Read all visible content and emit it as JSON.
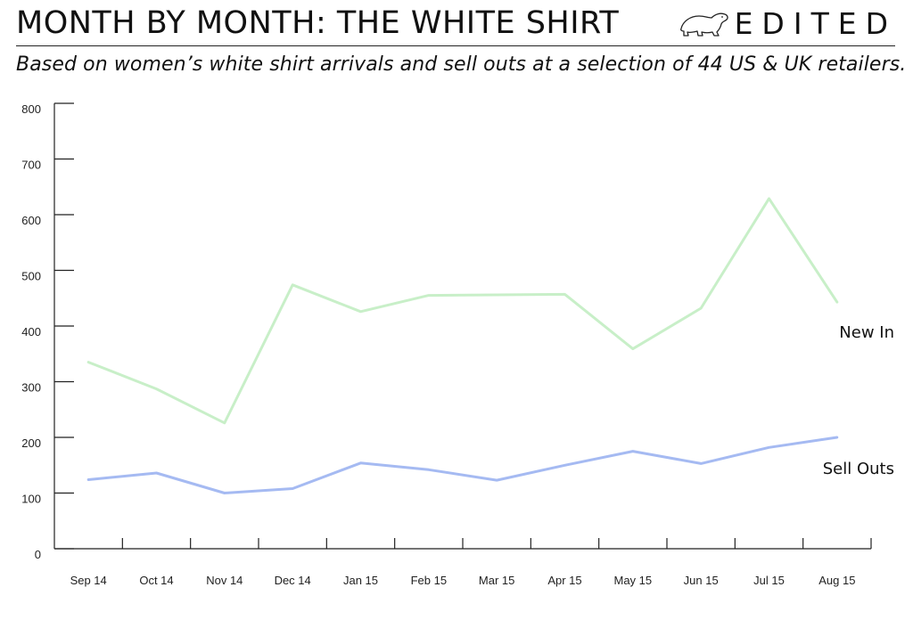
{
  "header": {
    "title": "MONTH BY MONTH: THE WHITE SHIRT",
    "subtitle": "Based on women’s white shirt arrivals and sell outs at a selection of 44 US & UK retailers.",
    "brand": "EDITED",
    "logo_icon": "polar-bear-icon"
  },
  "chart_data": {
    "type": "line",
    "title": "MONTH BY MONTH: THE WHITE SHIRT",
    "categories": [
      "Sep 14",
      "Oct 14",
      "Nov 14",
      "Dec 14",
      "Jan 15",
      "Feb 15",
      "Mar 15",
      "Apr 15",
      "May 15",
      "Jun 15",
      "Jul 15",
      "Aug 15"
    ],
    "series": [
      {
        "name": "New In",
        "color": "#c8efc8",
        "values": [
          335,
          287,
          226,
          474,
          426,
          455,
          456,
          457,
          359,
          432,
          629,
          443
        ]
      },
      {
        "name": "Sell Outs",
        "color": "#a5baf2",
        "values": [
          124,
          136,
          100,
          108,
          154,
          142,
          123,
          150,
          175,
          153,
          182,
          200
        ]
      }
    ],
    "yticks": [
      0,
      100,
      200,
      300,
      400,
      500,
      600,
      700,
      800
    ],
    "ylim": [
      0,
      800
    ],
    "xlabel": "",
    "ylabel": "",
    "grid": false,
    "legend": "inline-right"
  }
}
